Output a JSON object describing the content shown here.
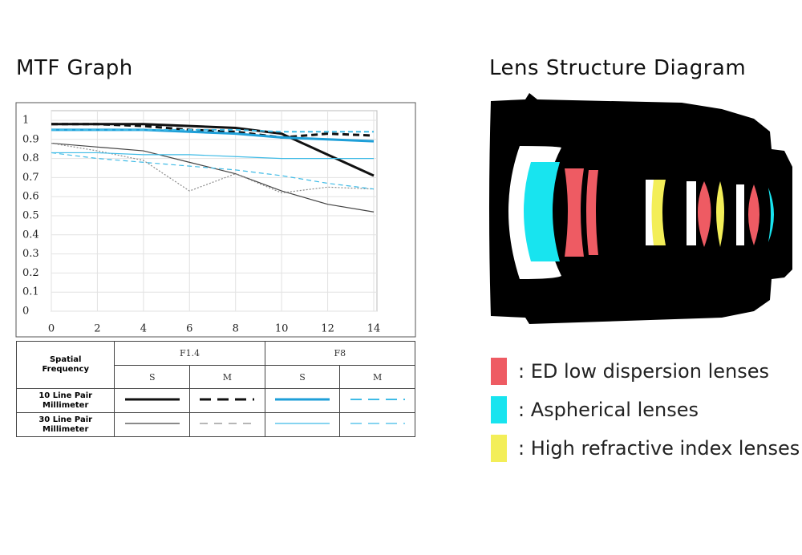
{
  "chart_data": {
    "type": "line",
    "title": "MTF Graph",
    "x": [
      0,
      2,
      4,
      6,
      8,
      10,
      12,
      14
    ],
    "xlim": [
      0,
      14
    ],
    "xticks": [
      0,
      2,
      4,
      6,
      8,
      10,
      12,
      14
    ],
    "ylim": [
      0,
      1
    ],
    "yticks": [
      0,
      0.1,
      0.2,
      0.3,
      0.4,
      0.5,
      0.6,
      0.7,
      0.8,
      0.9,
      1
    ],
    "grid": true,
    "series": [
      {
        "color": "#111111",
        "width": 3,
        "dash": "none",
        "values": [
          0.98,
          0.98,
          0.98,
          0.97,
          0.96,
          0.93,
          0.82,
          0.71
        ]
      },
      {
        "color": "#111111",
        "width": 3,
        "dash": "8,5",
        "values": [
          0.98,
          0.98,
          0.97,
          0.95,
          0.94,
          0.91,
          0.93,
          0.92
        ]
      },
      {
        "color": "#1e9fd8",
        "width": 3,
        "dash": "none",
        "values": [
          0.95,
          0.95,
          0.95,
          0.94,
          0.93,
          0.91,
          0.9,
          0.89
        ]
      },
      {
        "color": "#3fbbe6",
        "width": 2,
        "dash": "6,4",
        "values": [
          0.95,
          0.95,
          0.95,
          0.95,
          0.95,
          0.94,
          0.94,
          0.94
        ]
      },
      {
        "color": "#444444",
        "width": 1.2,
        "dash": "none",
        "values": [
          0.88,
          0.86,
          0.84,
          0.78,
          0.72,
          0.63,
          0.56,
          0.52
        ]
      },
      {
        "color": "#8a8a8a",
        "width": 1.2,
        "dash": "2,2",
        "values": [
          0.88,
          0.84,
          0.79,
          0.63,
          0.72,
          0.62,
          0.65,
          0.64
        ]
      },
      {
        "color": "#3fbbe6",
        "width": 1.2,
        "dash": "none",
        "values": [
          0.83,
          0.83,
          0.82,
          0.82,
          0.81,
          0.8,
          0.8,
          0.8
        ]
      },
      {
        "color": "#3fbbe6",
        "width": 1.2,
        "dash": "6,4",
        "values": [
          0.83,
          0.8,
          0.78,
          0.76,
          0.74,
          0.71,
          0.67,
          0.64
        ]
      }
    ]
  },
  "mtf_table": {
    "corner": "Spatial Frequency",
    "apertures": [
      "F1.4",
      "F8"
    ],
    "directions": [
      "S",
      "M",
      "S",
      "M"
    ],
    "rows": [
      "10 Line Pair Millimeter",
      "30 Line Pair Millimeter"
    ]
  },
  "lens_title": "Lens Structure Diagram",
  "lens_legend": [
    {
      "label": ": ED low dispersion lenses",
      "color": "#ee5b63"
    },
    {
      "label": ": Aspherical lenses",
      "color": "#18e4ef"
    },
    {
      "label": ": High refractive index lenses",
      "color": "#f3ee58"
    }
  ]
}
